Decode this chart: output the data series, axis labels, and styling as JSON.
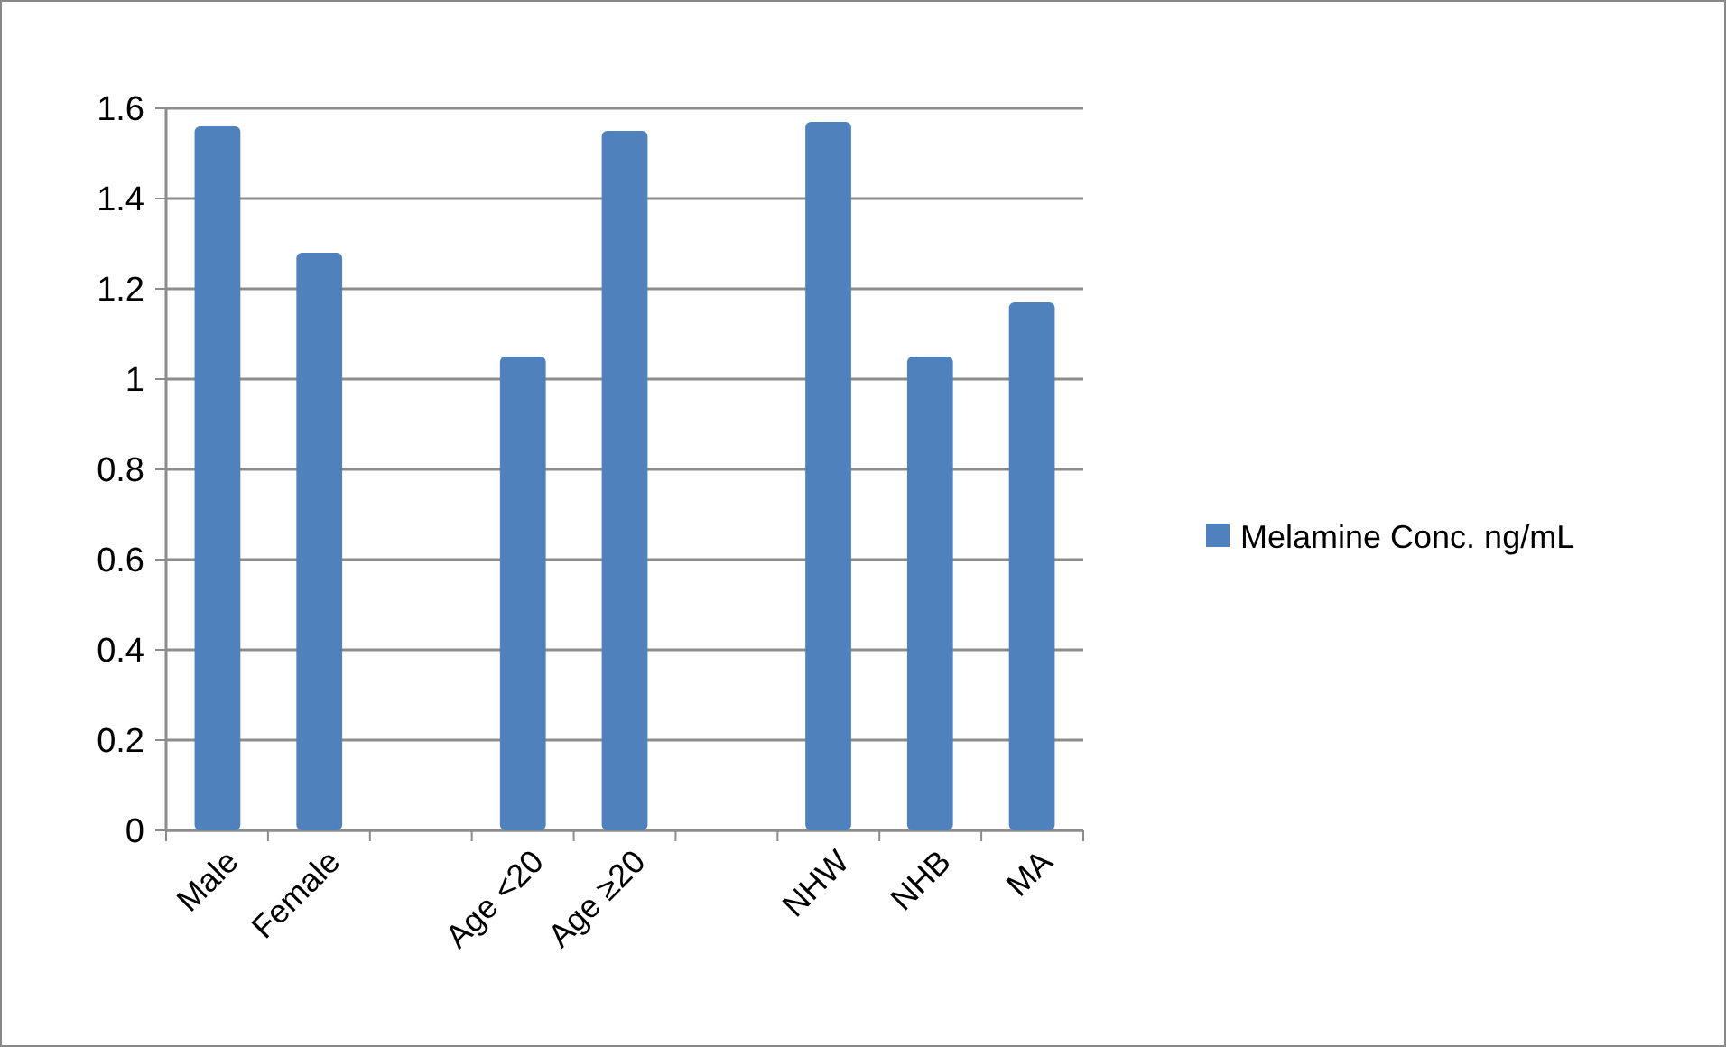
{
  "chart_data": {
    "type": "bar",
    "categories": [
      "Male",
      "Female",
      null,
      "Age <20",
      "Age ≥20",
      null,
      "NHW",
      "NHB",
      "MA"
    ],
    "series": [
      {
        "name": "Melamine Conc. ng/mL",
        "color": "#4f81bd",
        "values": [
          1.56,
          1.28,
          null,
          1.05,
          1.55,
          null,
          1.57,
          1.05,
          1.17
        ]
      }
    ],
    "ylim": [
      0,
      1.6
    ],
    "yticks": [
      0,
      0.2,
      0.4,
      0.6,
      0.8,
      1,
      1.2,
      1.4,
      1.6
    ],
    "grid": "y",
    "legend": "right"
  }
}
